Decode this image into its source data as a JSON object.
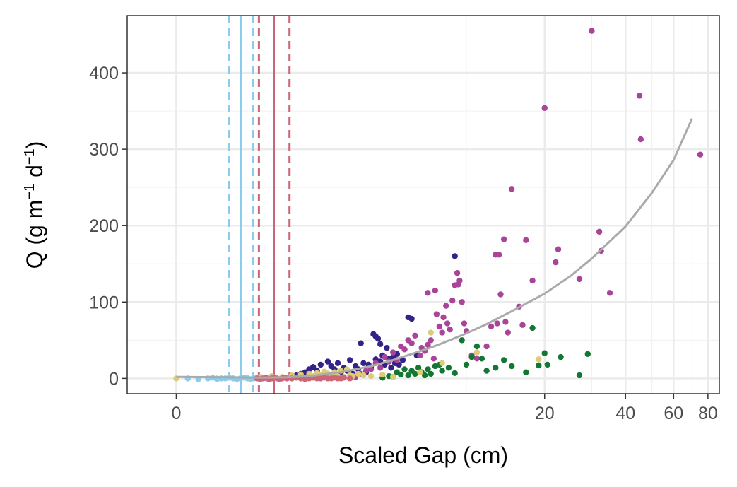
{
  "chart_data": {
    "type": "scatter",
    "xlabel": "Scaled Gap (cm)",
    "ylabel": "Q (g m",
    "ylabel_sup1": "−1",
    "ylabel_mid": " d",
    "ylabel_sup2": "−1",
    "ylabel_end": ")",
    "x_scale": "pseudo-log",
    "x_ticks": [
      0,
      20,
      40,
      60,
      80
    ],
    "y_ticks": [
      0,
      100,
      200,
      300,
      400
    ],
    "xlim": [
      -0.5,
      88
    ],
    "ylim": [
      -20,
      475
    ],
    "grid": true,
    "legend": "none",
    "colors": {
      "navy": "#332288",
      "purple": "#AA4499",
      "green": "#117733",
      "sand": "#DDCC77",
      "lightblue": "#88CCEE",
      "rose": "#CC6677",
      "fit": "#AAAAAA"
    },
    "vlines": [
      {
        "x": 0.55,
        "color": "#88CCEE",
        "style": "dashed"
      },
      {
        "x": 0.71,
        "color": "#88CCEE",
        "style": "solid"
      },
      {
        "x": 0.88,
        "color": "#88CCEE",
        "style": "dashed"
      },
      {
        "x": 0.98,
        "color": "#CC6677",
        "style": "dashed"
      },
      {
        "x": 1.24,
        "color": "#CC6677",
        "style": "solid"
      },
      {
        "x": 1.55,
        "color": "#CC6677",
        "style": "dashed"
      }
    ],
    "fit_curve": {
      "color": "#AAAAAA",
      "points": [
        [
          0,
          2
        ],
        [
          0.5,
          1.5
        ],
        [
          1,
          1
        ],
        [
          1.5,
          1.5
        ],
        [
          2,
          3
        ],
        [
          2.5,
          6
        ],
        [
          3,
          9
        ],
        [
          4,
          16
        ],
        [
          5,
          24
        ],
        [
          6,
          32
        ],
        [
          7,
          39
        ],
        [
          8,
          46
        ],
        [
          10,
          59
        ],
        [
          12,
          71
        ],
        [
          15,
          88
        ],
        [
          20,
          111
        ],
        [
          25,
          134
        ],
        [
          30,
          157
        ],
        [
          40,
          199
        ],
        [
          50,
          243
        ],
        [
          60,
          286
        ],
        [
          70,
          340
        ]
      ]
    },
    "series": [
      {
        "color": "#332288",
        "points": [
          [
            1.6,
            2
          ],
          [
            1.7,
            4
          ],
          [
            1.8,
            6
          ],
          [
            1.9,
            8
          ],
          [
            2.0,
            6
          ],
          [
            2.0,
            12
          ],
          [
            2.1,
            15
          ],
          [
            2.2,
            10
          ],
          [
            2.3,
            18
          ],
          [
            2.4,
            8
          ],
          [
            2.5,
            22
          ],
          [
            2.5,
            6
          ],
          [
            2.6,
            16
          ],
          [
            2.7,
            12
          ],
          [
            2.8,
            20
          ],
          [
            2.9,
            8
          ],
          [
            3.0,
            14
          ],
          [
            3.1,
            10
          ],
          [
            3.2,
            24
          ],
          [
            3.3,
            6
          ],
          [
            3.4,
            16
          ],
          [
            3.5,
            12
          ],
          [
            3.6,
            46
          ],
          [
            3.7,
            20
          ],
          [
            3.8,
            8
          ],
          [
            3.9,
            18
          ],
          [
            4.0,
            14
          ],
          [
            4.1,
            58
          ],
          [
            4.2,
            55
          ],
          [
            4.2,
            25
          ],
          [
            4.3,
            52
          ],
          [
            4.4,
            22
          ],
          [
            4.4,
            45
          ],
          [
            4.5,
            30
          ],
          [
            4.6,
            18
          ],
          [
            4.7,
            40
          ],
          [
            4.8,
            26
          ],
          [
            4.9,
            14
          ],
          [
            5.0,
            28
          ],
          [
            5.1,
            20
          ],
          [
            5.2,
            32
          ],
          [
            5.3,
            18
          ],
          [
            5.5,
            24
          ],
          [
            5.8,
            80
          ],
          [
            6.0,
            78
          ],
          [
            6.3,
            30
          ],
          [
            9.0,
            160
          ]
        ]
      },
      {
        "color": "#AA4499",
        "points": [
          [
            3.4,
            2
          ],
          [
            3.6,
            6
          ],
          [
            3.8,
            10
          ],
          [
            4.0,
            12
          ],
          [
            4.2,
            20
          ],
          [
            4.4,
            14
          ],
          [
            4.6,
            28
          ],
          [
            4.8,
            22
          ],
          [
            5.0,
            34
          ],
          [
            5.2,
            24
          ],
          [
            5.4,
            42
          ],
          [
            5.6,
            38
          ],
          [
            5.8,
            50
          ],
          [
            6.0,
            46
          ],
          [
            6.2,
            56
          ],
          [
            6.5,
            30
          ],
          [
            6.6,
            40
          ],
          [
            6.8,
            36
          ],
          [
            7.0,
            44
          ],
          [
            7.0,
            112
          ],
          [
            7.2,
            50
          ],
          [
            7.4,
            26
          ],
          [
            7.5,
            115
          ],
          [
            7.6,
            84
          ],
          [
            7.8,
            68
          ],
          [
            8.0,
            60
          ],
          [
            8.1,
            80
          ],
          [
            8.3,
            95
          ],
          [
            8.4,
            72
          ],
          [
            8.6,
            64
          ],
          [
            8.8,
            102
          ],
          [
            9.0,
            122
          ],
          [
            9.2,
            138
          ],
          [
            9.3,
            123
          ],
          [
            9.4,
            128
          ],
          [
            9.6,
            100
          ],
          [
            9.8,
            72
          ],
          [
            10.0,
            62
          ],
          [
            10.5,
            30
          ],
          [
            11,
            26
          ],
          [
            12,
            42
          ],
          [
            12.5,
            68
          ],
          [
            13,
            162
          ],
          [
            13.2,
            72
          ],
          [
            13.4,
            162
          ],
          [
            13.6,
            110
          ],
          [
            14,
            182
          ],
          [
            14.2,
            74
          ],
          [
            14.5,
            60
          ],
          [
            15,
            248
          ],
          [
            16,
            94
          ],
          [
            16.5,
            70
          ],
          [
            17,
            181
          ],
          [
            18,
            128
          ],
          [
            20,
            354
          ],
          [
            22,
            152
          ],
          [
            22.5,
            169
          ],
          [
            27,
            130
          ],
          [
            30,
            455
          ],
          [
            32,
            192
          ],
          [
            32.5,
            167
          ],
          [
            35,
            112
          ],
          [
            45,
            370
          ],
          [
            45.5,
            313
          ],
          [
            75,
            293
          ]
        ]
      },
      {
        "color": "#117733",
        "points": [
          [
            4.5,
            1
          ],
          [
            4.8,
            3
          ],
          [
            5.0,
            2
          ],
          [
            5.2,
            8
          ],
          [
            5.4,
            5
          ],
          [
            5.6,
            12
          ],
          [
            5.8,
            4
          ],
          [
            6.0,
            10
          ],
          [
            6.2,
            6
          ],
          [
            6.4,
            14
          ],
          [
            6.6,
            8
          ],
          [
            6.8,
            4
          ],
          [
            7.0,
            12
          ],
          [
            7.2,
            6
          ],
          [
            7.5,
            16
          ],
          [
            7.8,
            18
          ],
          [
            8.0,
            10
          ],
          [
            8.5,
            14
          ],
          [
            9.0,
            7
          ],
          [
            9.6,
            50
          ],
          [
            10,
            18
          ],
          [
            10.5,
            28
          ],
          [
            11,
            42
          ],
          [
            11.5,
            26
          ],
          [
            12,
            10
          ],
          [
            13,
            14
          ],
          [
            14,
            24
          ],
          [
            15,
            16
          ],
          [
            17,
            8
          ],
          [
            18,
            66
          ],
          [
            19,
            17
          ],
          [
            20,
            33
          ],
          [
            20.5,
            18
          ],
          [
            23,
            28
          ],
          [
            27,
            4
          ],
          [
            29,
            32
          ]
        ]
      },
      {
        "color": "#DDCC77",
        "points": [
          [
            0,
            0
          ],
          [
            0.4,
            0
          ],
          [
            0.8,
            1
          ],
          [
            1.0,
            2
          ],
          [
            1.2,
            3
          ],
          [
            1.4,
            2
          ],
          [
            1.6,
            4
          ],
          [
            1.8,
            5
          ],
          [
            2.0,
            6
          ],
          [
            2.1,
            3
          ],
          [
            2.2,
            7
          ],
          [
            2.3,
            4
          ],
          [
            2.4,
            9
          ],
          [
            2.5,
            6
          ],
          [
            2.6,
            5
          ],
          [
            2.7,
            8
          ],
          [
            2.8,
            3
          ],
          [
            2.9,
            10
          ],
          [
            3.0,
            2
          ],
          [
            3.1,
            12
          ],
          [
            3.2,
            4
          ],
          [
            3.3,
            3
          ],
          [
            3.5,
            6
          ],
          [
            3.7,
            4
          ],
          [
            4.0,
            3
          ],
          [
            4.5,
            5
          ],
          [
            5.0,
            2
          ],
          [
            6.5,
            8
          ],
          [
            7.2,
            60
          ],
          [
            8.0,
            20
          ],
          [
            11,
            34
          ],
          [
            19,
            25
          ]
        ]
      },
      {
        "color": "#88CCEE",
        "points": [
          [
            0.1,
            0
          ],
          [
            0.2,
            -1
          ],
          [
            0.3,
            0
          ],
          [
            0.35,
            1
          ],
          [
            0.4,
            -1
          ],
          [
            0.45,
            0
          ],
          [
            0.5,
            0
          ],
          [
            0.55,
            1
          ],
          [
            0.6,
            0
          ],
          [
            0.65,
            -1
          ],
          [
            0.7,
            0
          ],
          [
            0.75,
            1
          ],
          [
            0.8,
            0
          ],
          [
            0.85,
            -1
          ],
          [
            0.9,
            0
          ],
          [
            0.95,
            1
          ],
          [
            1.0,
            0
          ],
          [
            1.1,
            0
          ],
          [
            1.2,
            1
          ]
        ]
      },
      {
        "color": "#CC6677",
        "points": [
          [
            0.95,
            0
          ],
          [
            1.0,
            -1
          ],
          [
            1.05,
            0
          ],
          [
            1.1,
            1
          ],
          [
            1.15,
            -1
          ],
          [
            1.2,
            0
          ],
          [
            1.25,
            1
          ],
          [
            1.3,
            0
          ],
          [
            1.35,
            -1
          ],
          [
            1.4,
            0
          ],
          [
            1.45,
            1
          ],
          [
            1.5,
            0
          ],
          [
            1.6,
            0
          ],
          [
            1.7,
            1
          ],
          [
            1.8,
            0
          ],
          [
            1.9,
            -1
          ],
          [
            2.0,
            0
          ],
          [
            2.1,
            1
          ],
          [
            2.2,
            0
          ],
          [
            2.3,
            0
          ],
          [
            2.4,
            1
          ],
          [
            2.5,
            0
          ],
          [
            2.6,
            0
          ],
          [
            2.7,
            1
          ],
          [
            2.8,
            0
          ],
          [
            2.9,
            0
          ],
          [
            3.0,
            1
          ],
          [
            3.2,
            0
          ]
        ]
      }
    ]
  }
}
